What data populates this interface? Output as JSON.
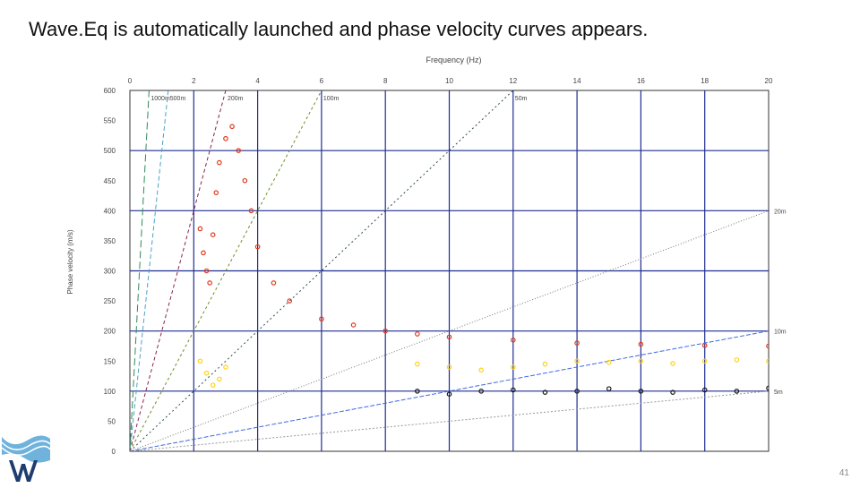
{
  "slide": {
    "title": "Wave.Eq is automatically launched and phase velocity curves appears.",
    "page_number": "41",
    "logo_text": "WE"
  },
  "chart_data": {
    "type": "scatter",
    "xlabel": "Frequency (Hz)",
    "ylabel": "Phase velocity (m/s)",
    "xlim": [
      0,
      20
    ],
    "ylim": [
      0,
      600
    ],
    "x_ticks": [
      0,
      2,
      4,
      6,
      8,
      10,
      12,
      14,
      16,
      18,
      20
    ],
    "y_ticks": [
      0,
      50,
      100,
      150,
      200,
      250,
      300,
      350,
      400,
      450,
      500,
      550,
      600
    ],
    "x_axis_position": "top",
    "grid": true,
    "wavelength_lines": [
      {
        "label": "1000m",
        "wavelength": 1000,
        "color": "#2e8b57",
        "dash": "8,4"
      },
      {
        "label": "500m",
        "wavelength": 500,
        "color": "#4aa3c8",
        "dash": "5,3"
      },
      {
        "label": "200m",
        "wavelength": 200,
        "color": "#8b2252",
        "dash": "4,3"
      },
      {
        "label": "100m",
        "wavelength": 100,
        "color": "#6b8e23",
        "dash": "3,3"
      },
      {
        "label": "50m",
        "wavelength": 50,
        "color": "#2f4f4f",
        "dash": "2,3"
      },
      {
        "label": "20m",
        "wavelength": 20,
        "color": "#777777",
        "dash": "1,2"
      },
      {
        "label": "10m",
        "wavelength": 10,
        "color": "#4169e1",
        "dash": "5,2"
      },
      {
        "label": "5m",
        "wavelength": 5,
        "color": "#999999",
        "dash": "2,2"
      }
    ],
    "series": [
      {
        "values": [
          {
            "x": 2.2,
            "y": 370
          },
          {
            "x": 2.3,
            "y": 330
          },
          {
            "x": 2.4,
            "y": 300
          },
          {
            "x": 2.5,
            "y": 280
          },
          {
            "x": 2.6,
            "y": 360
          },
          {
            "x": 2.7,
            "y": 430
          },
          {
            "x": 2.8,
            "y": 480
          },
          {
            "x": 3.0,
            "y": 520
          },
          {
            "x": 3.2,
            "y": 540
          },
          {
            "x": 3.4,
            "y": 500
          },
          {
            "x": 3.6,
            "y": 450
          },
          {
            "x": 3.8,
            "y": 400
          },
          {
            "x": 4.0,
            "y": 340
          },
          {
            "x": 4.5,
            "y": 280
          },
          {
            "x": 5.0,
            "y": 250
          },
          {
            "x": 6.0,
            "y": 220
          },
          {
            "x": 7.0,
            "y": 210
          },
          {
            "x": 8.0,
            "y": 200
          },
          {
            "x": 9.0,
            "y": 195
          },
          {
            "x": 10.0,
            "y": 190
          },
          {
            "x": 12.0,
            "y": 185
          },
          {
            "x": 14.0,
            "y": 180
          },
          {
            "x": 16.0,
            "y": 178
          },
          {
            "x": 18.0,
            "y": 176
          },
          {
            "x": 20.0,
            "y": 175
          }
        ]
      },
      {
        "values": [
          {
            "x": 2.2,
            "y": 150
          },
          {
            "x": 2.4,
            "y": 130
          },
          {
            "x": 2.6,
            "y": 110
          },
          {
            "x": 2.8,
            "y": 120
          },
          {
            "x": 3.0,
            "y": 140
          },
          {
            "x": 9.0,
            "y": 145
          },
          {
            "x": 10.0,
            "y": 140
          },
          {
            "x": 11.0,
            "y": 135
          },
          {
            "x": 12.0,
            "y": 140
          },
          {
            "x": 13.0,
            "y": 145
          },
          {
            "x": 14.0,
            "y": 150
          },
          {
            "x": 15.0,
            "y": 148
          },
          {
            "x": 16.0,
            "y": 150
          },
          {
            "x": 17.0,
            "y": 146
          },
          {
            "x": 18.0,
            "y": 150
          },
          {
            "x": 19.0,
            "y": 152
          },
          {
            "x": 20.0,
            "y": 150
          }
        ]
      },
      {
        "values": [
          {
            "x": 9.0,
            "y": 100
          },
          {
            "x": 10.0,
            "y": 95
          },
          {
            "x": 11.0,
            "y": 100
          },
          {
            "x": 12.0,
            "y": 102
          },
          {
            "x": 13.0,
            "y": 98
          },
          {
            "x": 14.0,
            "y": 100
          },
          {
            "x": 15.0,
            "y": 104
          },
          {
            "x": 16.0,
            "y": 100
          },
          {
            "x": 17.0,
            "y": 98
          },
          {
            "x": 18.0,
            "y": 102
          },
          {
            "x": 19.0,
            "y": 100
          },
          {
            "x": 20.0,
            "y": 105
          }
        ]
      }
    ],
    "colors": {
      "grid": "#1f2d8f",
      "frame": "#333333",
      "axis_text": "#444444",
      "title_text": "#111111",
      "series": [
        "#e03a1e",
        "#ffd21a",
        "#1a1a1a"
      ]
    }
  }
}
